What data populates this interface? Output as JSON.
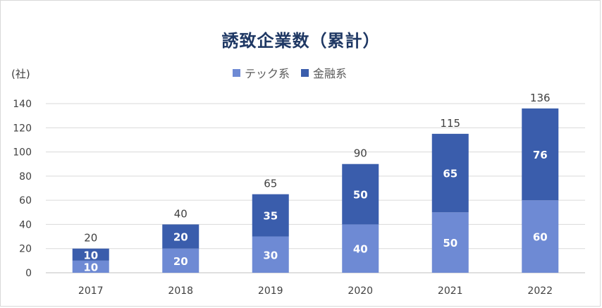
{
  "chart_data": {
    "type": "bar",
    "stacked": true,
    "title": "誘致企業数（累計）",
    "unit_label": "(社)",
    "categories": [
      "2017",
      "2018",
      "2019",
      "2020",
      "2021",
      "2022"
    ],
    "series": [
      {
        "name": "テック系",
        "values": [
          10,
          20,
          30,
          40,
          50,
          60
        ],
        "color": "#6e8ad4"
      },
      {
        "name": "金融系",
        "values": [
          10,
          20,
          35,
          50,
          65,
          76
        ],
        "color": "#3a5dac"
      }
    ],
    "totals": [
      20,
      40,
      65,
      90,
      115,
      136
    ],
    "ylim": [
      0,
      140
    ],
    "yticks": [
      0,
      20,
      40,
      60,
      80,
      100,
      120,
      140
    ],
    "grid": true,
    "legend": "top-center"
  }
}
